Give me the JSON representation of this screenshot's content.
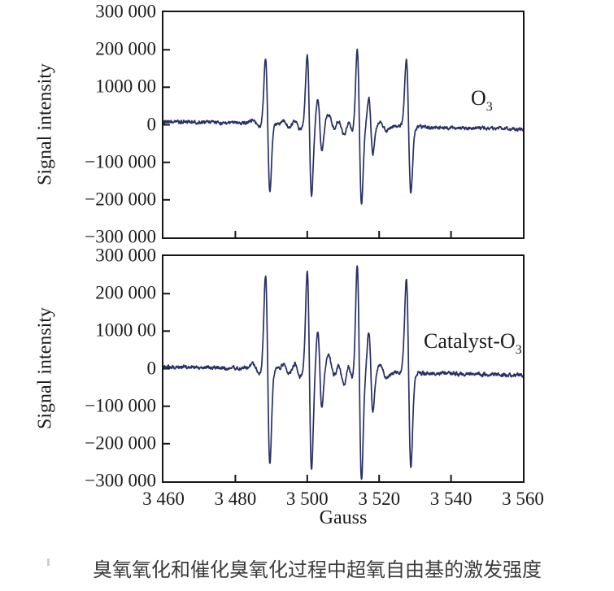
{
  "figure": {
    "caption": "臭氧氧化和催化臭氧化过程中超氧自由基的激发强度"
  },
  "chart_data": {
    "type": "line",
    "title": "",
    "xlabel": "Gauss",
    "ylabel": "Signal intensity",
    "x_range": [
      3460,
      3560
    ],
    "y_range": [
      -300000,
      300000
    ],
    "x_tick_values": [
      3460,
      3480,
      3500,
      3520,
      3540,
      3560
    ],
    "x_tick_labels": [
      "3 460",
      "3 480",
      "3 500",
      "3 520",
      "3 540",
      "3 560"
    ],
    "y_tick_values": [
      300000,
      200000,
      100000,
      0,
      -100000,
      -200000,
      -300000
    ],
    "y_tick_labels": [
      "300 000",
      "200 000",
      "1000 00",
      "0",
      "−100 000",
      "−200 000",
      "−300 000"
    ],
    "grid": false,
    "legend": "inline-annotations",
    "line_color": "#293066",
    "axis_color": "#161616",
    "description": "First-derivative EPR spectra of superoxide radical spin adduct: characteristic quartet with satellite lines, identical line positions in both panels, larger amplitude in the catalytic ozonation panel.",
    "epr_lines": [
      [
        3485.8,
        0.05,
        0.9
      ],
      [
        3489.0,
        0.98,
        0.6
      ],
      [
        3494.3,
        0.05,
        0.9
      ],
      [
        3497.3,
        0.07,
        0.8
      ],
      [
        3500.6,
        1.03,
        0.6
      ],
      [
        3503.5,
        0.4,
        0.58
      ],
      [
        3506.9,
        0.15,
        1.0
      ],
      [
        3509.4,
        0.16,
        1.0
      ],
      [
        3512.1,
        0.11,
        0.75
      ],
      [
        3514.5,
        1.14,
        0.6
      ],
      [
        3517.7,
        0.42,
        0.58
      ],
      [
        3521.2,
        0.06,
        0.9
      ],
      [
        3528.2,
        0.98,
        0.63
      ]
    ],
    "plots": [
      {
        "id": "o3",
        "annotation_main": "O",
        "annotation_sub": "3",
        "amplitude": 180000,
        "baseline_start": 9000,
        "baseline_end": -12000,
        "noise": 7500,
        "seed": 73,
        "peak_maxima_gauss": [
          3489,
          3500.6,
          3514.5,
          3528.2
        ],
        "peak_max_intensity": [
          176000,
          185000,
          205000,
          176000
        ],
        "peak_min_intensity": [
          -176000,
          -185000,
          -205000,
          -176000
        ]
      },
      {
        "id": "catalyst-o3",
        "annotation_main": "Catalyst-O",
        "annotation_sub": "3",
        "amplitude": 255000,
        "baseline_start": 6000,
        "baseline_end": -18000,
        "noise": 8200,
        "seed": 1579,
        "peak_maxima_gauss": [
          3489,
          3500.6,
          3514.5,
          3528.2
        ],
        "peak_max_intensity": [
          250000,
          263000,
          291000,
          250000
        ],
        "peak_min_intensity": [
          -250000,
          -263000,
          -291000,
          -250000
        ]
      }
    ]
  }
}
